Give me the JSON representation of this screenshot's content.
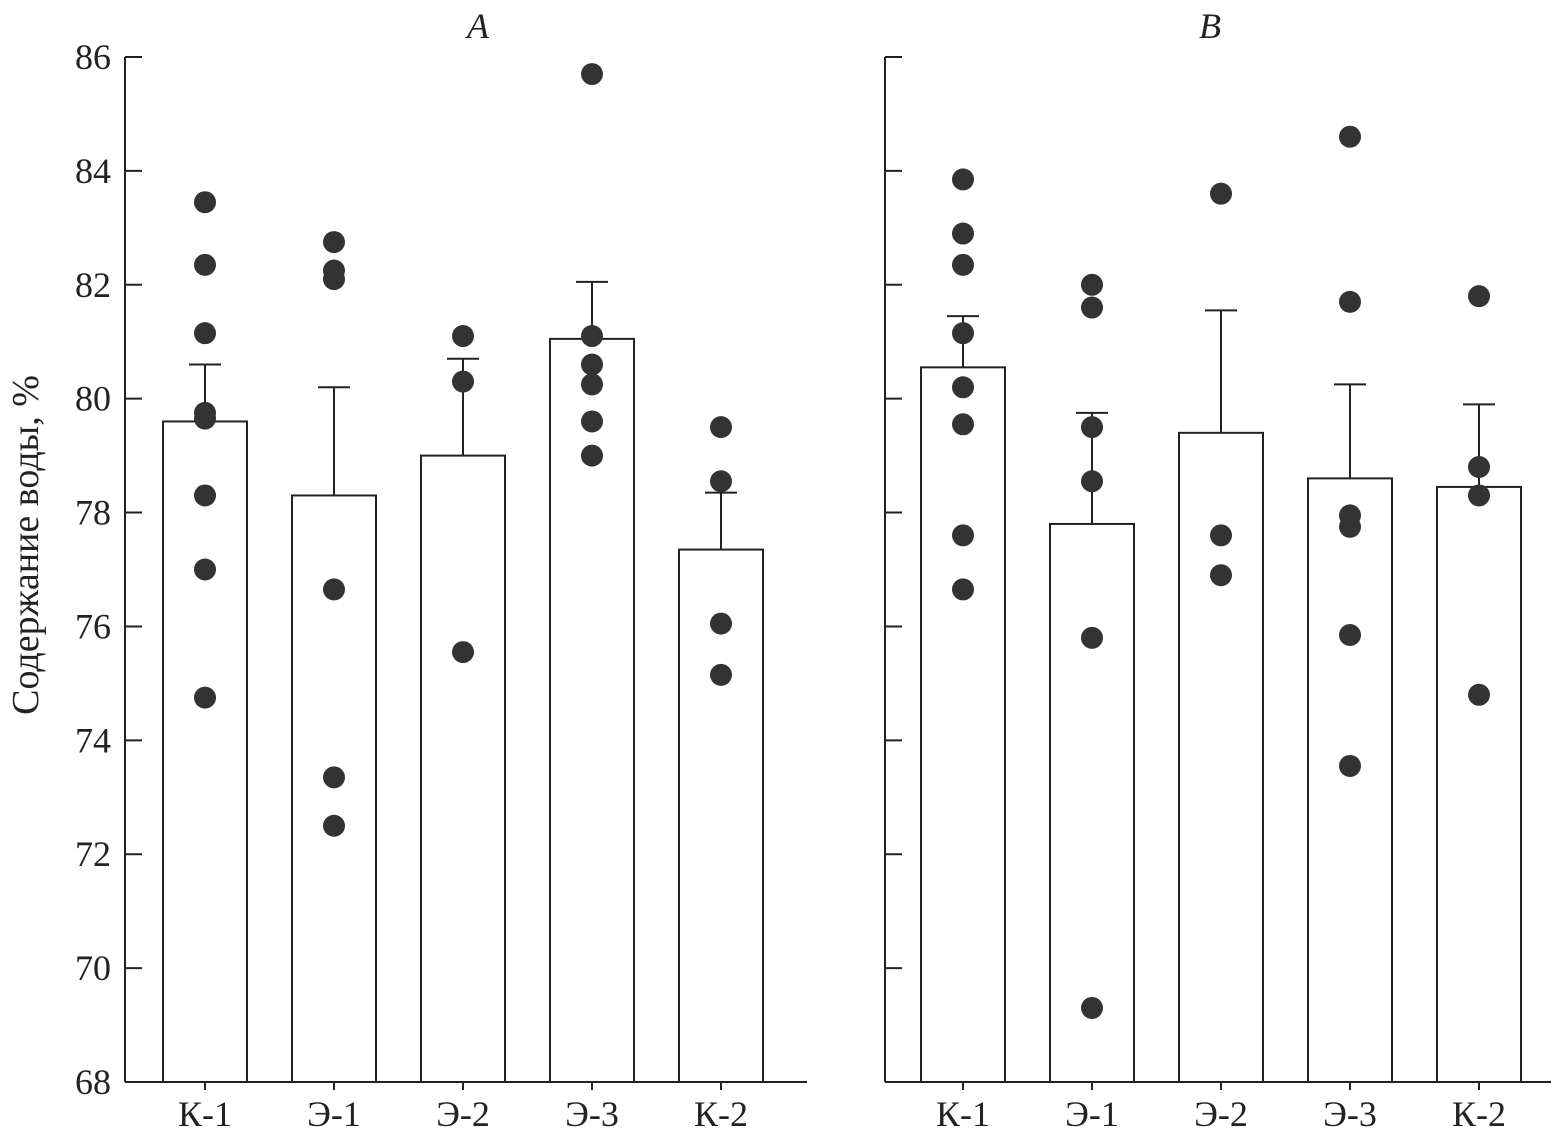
{
  "chart_data": {
    "type": "bar",
    "ylabel": "Содержание воды, %",
    "ylim": [
      68,
      86
    ],
    "yticks": [
      68,
      70,
      72,
      74,
      76,
      78,
      80,
      82,
      84,
      86
    ],
    "categories": [
      "К-1",
      "Э-1",
      "Э-2",
      "Э-3",
      "К-2"
    ],
    "panels": [
      {
        "title": "A",
        "bars": [
          {
            "category": "К-1",
            "value": 79.6,
            "error": 1.0,
            "points": [
              83.45,
              82.35,
              81.15,
              79.75,
              79.65,
              78.3,
              77.0,
              74.75
            ]
          },
          {
            "category": "Э-1",
            "value": 78.3,
            "error": 1.9,
            "points": [
              82.75,
              82.25,
              82.1,
              76.65,
              73.35,
              72.5
            ]
          },
          {
            "category": "Э-2",
            "value": 79.0,
            "error": 1.7,
            "points": [
              81.1,
              80.3,
              75.55
            ]
          },
          {
            "category": "Э-3",
            "value": 81.05,
            "error": 1.0,
            "points": [
              85.7,
              81.1,
              80.6,
              80.25,
              79.6,
              79.0
            ]
          },
          {
            "category": "К-2",
            "value": 77.35,
            "error": 1.0,
            "points": [
              79.5,
              78.55,
              76.05,
              75.15
            ]
          }
        ]
      },
      {
        "title": "B",
        "bars": [
          {
            "category": "К-1",
            "value": 80.55,
            "error": 0.9,
            "points": [
              83.85,
              82.9,
              82.35,
              81.15,
              80.2,
              79.55,
              77.6,
              76.65
            ]
          },
          {
            "category": "Э-1",
            "value": 77.8,
            "error": 1.95,
            "points": [
              82.0,
              81.6,
              79.5,
              78.55,
              75.8,
              69.3
            ]
          },
          {
            "category": "Э-2",
            "value": 79.4,
            "error": 2.15,
            "points": [
              83.6,
              77.6,
              76.9
            ]
          },
          {
            "category": "Э-3",
            "value": 78.6,
            "error": 1.65,
            "points": [
              84.6,
              81.7,
              77.95,
              77.75,
              75.85,
              73.55
            ]
          },
          {
            "category": "К-2",
            "value": 78.45,
            "error": 1.45,
            "points": [
              81.8,
              78.8,
              78.3,
              74.8
            ]
          }
        ]
      }
    ],
    "colors": {
      "bar_fill": "#ffffff",
      "stroke": "#222222",
      "point": "#333333"
    }
  }
}
